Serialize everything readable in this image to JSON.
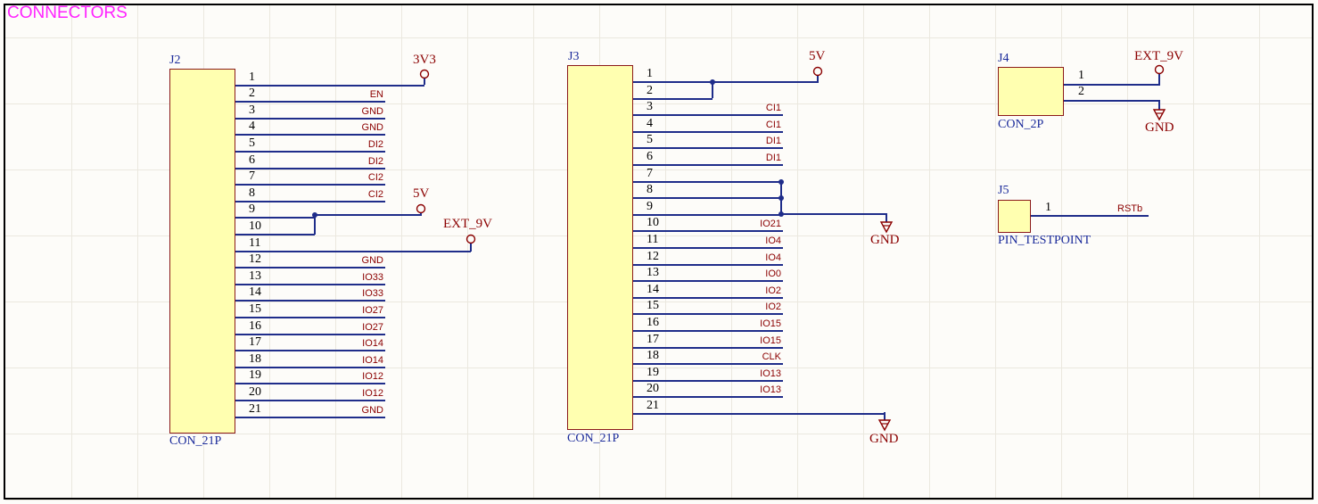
{
  "sheet": {
    "title": "CONNECTORS"
  },
  "components": {
    "j2": {
      "designator": "J2",
      "value": "CON_21P",
      "pins": [
        "1",
        "2",
        "3",
        "4",
        "5",
        "6",
        "7",
        "8",
        "9",
        "10",
        "11",
        "12",
        "13",
        "14",
        "15",
        "16",
        "17",
        "18",
        "19",
        "20",
        "21"
      ],
      "nets": [
        "",
        "EN",
        "GND",
        "GND",
        "DI2",
        "DI2",
        "CI2",
        "CI2",
        "",
        "",
        "",
        "GND",
        "IO33",
        "IO33",
        "IO27",
        "IO27",
        "IO14",
        "IO14",
        "IO12",
        "IO12",
        "GND"
      ],
      "power": {
        "p1": "3V3",
        "p9": "5V",
        "p11": "EXT_9V"
      }
    },
    "j3": {
      "designator": "J3",
      "value": "CON_21P",
      "pins": [
        "1",
        "2",
        "3",
        "4",
        "5",
        "6",
        "7",
        "8",
        "9",
        "10",
        "11",
        "12",
        "13",
        "14",
        "15",
        "16",
        "17",
        "18",
        "19",
        "20",
        "21"
      ],
      "nets": [
        "",
        "",
        "CI1",
        "CI1",
        "DI1",
        "DI1",
        "",
        "",
        "",
        "IO21",
        "IO4",
        "IO4",
        "IO0",
        "IO2",
        "IO2",
        "IO15",
        "IO15",
        "CLK",
        "IO13",
        "IO13",
        ""
      ],
      "power": {
        "p1": "5V",
        "gnd_a": "GND",
        "gnd_b": "GND"
      }
    },
    "j4": {
      "designator": "J4",
      "value": "CON_2P",
      "pins": [
        "1",
        "2"
      ],
      "power": {
        "p1": "EXT_9V",
        "p2": "GND"
      }
    },
    "j5": {
      "designator": "J5",
      "value": "PIN_TESTPOINT",
      "pins": [
        "1"
      ],
      "nets": [
        "RSTb"
      ]
    }
  },
  "colors": {
    "wire": "#1f2d8a",
    "net_label": "#8b0000",
    "body_fill": "#ffffb0",
    "title": "#ff22ff",
    "designator": "#1a2a9a"
  },
  "icons": {
    "power_port": "circle-power-icon",
    "ground": "ground-arrow-icon"
  }
}
